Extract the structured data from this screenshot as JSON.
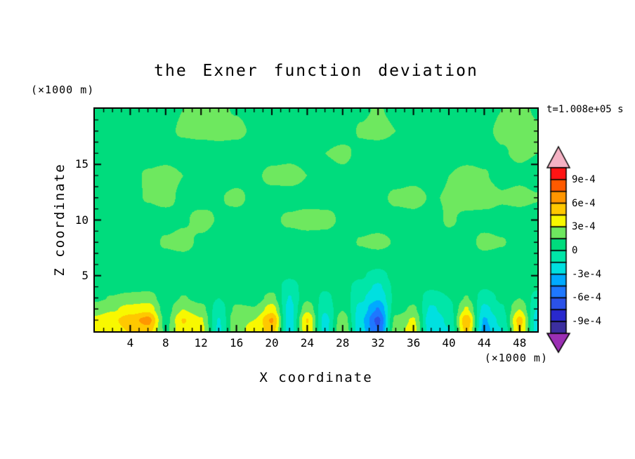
{
  "labels": {
    "title": "the Exner function deviation",
    "z_unit": "(×1000 m)",
    "x_unit": "(×1000 m)",
    "x_label": "X coordinate",
    "y_label": "Z coordinate",
    "time": "t=1.008e+05 s"
  },
  "chart_data": {
    "type": "filled-contour",
    "title": "the Exner function deviation",
    "xlabel": "X coordinate (×1000 m)",
    "ylabel": "Z coordinate (×1000 m)",
    "annotation": "t=1.008e+05 s",
    "x_range": [
      0,
      50
    ],
    "y_range": [
      0,
      20
    ],
    "x_major_ticks": [
      4,
      8,
      12,
      16,
      20,
      24,
      28,
      32,
      36,
      40,
      44,
      48
    ],
    "y_major_ticks": [
      5,
      10,
      15
    ],
    "x_minor_step": 1,
    "y_minor_step": 1,
    "contour_interval": 0.00015,
    "value_scale": 0.0001,
    "colorbar": {
      "labels_top_to_bottom": [
        "9e-4",
        "6e-4",
        "3e-4",
        "0",
        "-3e-4",
        "-6e-4",
        "-9e-4"
      ],
      "arrow_top_color": "#f5b2c4",
      "arrow_bottom_color": "#9b30b4",
      "band_colors_top_to_bottom": [
        "#ff1414",
        "#ff5a00",
        "#ff9600",
        "#ffc800",
        "#f8f800",
        "#6ee85f",
        "#00dc7d",
        "#00e6a8",
        "#00e0e0",
        "#00aaff",
        "#1e78ff",
        "#2b52e8",
        "#2929cd",
        "#3c2fa0"
      ],
      "band_min": -10.5,
      "band_max": 10.5,
      "band_units": "1e-4"
    },
    "grid": {
      "units": "1e-4",
      "x": [
        0,
        2,
        4,
        6,
        8,
        10,
        12,
        14,
        16,
        18,
        20,
        22,
        24,
        26,
        28,
        30,
        32,
        34,
        36,
        38,
        40,
        42,
        44,
        46,
        48,
        50
      ],
      "z": [
        0,
        1,
        2,
        3,
        4,
        5,
        6,
        8,
        10,
        12,
        14,
        16,
        18,
        20
      ],
      "values_by_z_row": [
        [
          3.2,
          3.8,
          4.6,
          5.2,
          1.2,
          4.2,
          3.6,
          -1.8,
          2.6,
          3.4,
          5.2,
          -2.4,
          4.2,
          -2.0,
          3.0,
          -2.4,
          -5.8,
          2.4,
          3.6,
          -2.6,
          -1.6,
          5.0,
          -3.6,
          -1.6,
          4.6,
          -2.2
        ],
        [
          3.4,
          4.2,
          5.4,
          6.6,
          1.0,
          4.6,
          3.2,
          -1.6,
          2.8,
          3.0,
          6.2,
          -2.6,
          4.6,
          -2.2,
          2.6,
          -2.6,
          -6.4,
          2.0,
          3.2,
          -2.8,
          -1.2,
          5.6,
          -3.2,
          -1.0,
          5.0,
          -2.4
        ],
        [
          2.2,
          2.8,
          3.6,
          4.0,
          0.8,
          3.0,
          2.0,
          -0.8,
          1.8,
          1.6,
          3.8,
          -2.2,
          2.6,
          -1.2,
          1.4,
          -2.0,
          -4.6,
          0.8,
          1.8,
          -1.8,
          -0.6,
          3.2,
          -2.0,
          -0.2,
          3.0,
          -1.6
        ],
        [
          1.2,
          1.6,
          2.0,
          2.2,
          0.7,
          1.6,
          1.0,
          0.0,
          1.0,
          0.8,
          2.0,
          -1.6,
          1.2,
          -0.4,
          0.8,
          -1.2,
          -2.8,
          0.4,
          0.9,
          -0.8,
          0.0,
          1.6,
          -0.8,
          0.3,
          1.5,
          -0.6
        ],
        [
          0.8,
          0.9,
          1.0,
          1.1,
          0.7,
          0.9,
          0.7,
          0.4,
          0.7,
          0.6,
          1.0,
          -0.8,
          0.8,
          0.2,
          0.6,
          -0.6,
          -1.8,
          0.4,
          0.6,
          0.2,
          0.4,
          0.9,
          0.1,
          0.5,
          0.9,
          0.2
        ],
        [
          0.7,
          0.8,
          0.8,
          0.8,
          0.7,
          0.7,
          0.6,
          0.6,
          0.7,
          0.6,
          0.8,
          0.2,
          0.7,
          0.5,
          0.6,
          0.2,
          -0.6,
          0.5,
          0.6,
          0.4,
          0.5,
          0.7,
          0.4,
          0.6,
          0.7,
          0.5
        ],
        [
          0.9,
          1.0,
          0.9,
          0.8,
          0.7,
          0.7,
          0.7,
          0.7,
          0.8,
          0.7,
          0.7,
          0.5,
          0.7,
          0.6,
          0.7,
          0.5,
          0.3,
          0.6,
          0.7,
          0.6,
          0.7,
          0.8,
          0.6,
          0.7,
          0.8,
          0.6
        ],
        [
          0.8,
          0.9,
          1.0,
          0.9,
          1.7,
          2.0,
          1.2,
          0.8,
          0.8,
          0.7,
          0.8,
          0.7,
          0.8,
          0.9,
          0.8,
          1.6,
          1.9,
          1.4,
          0.9,
          0.8,
          0.9,
          1.0,
          1.9,
          1.6,
          0.9,
          0.7
        ],
        [
          0.7,
          0.8,
          0.9,
          0.8,
          0.9,
          1.3,
          2.0,
          1.4,
          0.8,
          0.9,
          1.2,
          1.8,
          2.1,
          1.9,
          1.3,
          0.9,
          0.8,
          0.9,
          1.0,
          0.8,
          1.7,
          1.2,
          0.9,
          0.8,
          0.8,
          0.7
        ],
        [
          0.8,
          0.9,
          1.1,
          1.6,
          1.9,
          1.2,
          0.9,
          1.4,
          1.9,
          1.1,
          0.9,
          0.8,
          0.9,
          1.0,
          1.3,
          0.9,
          1.1,
          1.8,
          2.0,
          1.4,
          1.6,
          2.0,
          2.2,
          1.7,
          1.9,
          1.6
        ],
        [
          0.7,
          0.8,
          1.0,
          1.7,
          2.0,
          1.5,
          0.9,
          0.8,
          0.9,
          1.2,
          1.9,
          2.1,
          1.5,
          0.9,
          1.2,
          0.8,
          0.7,
          0.9,
          1.1,
          0.9,
          1.5,
          1.9,
          1.6,
          1.0,
          1.2,
          0.9
        ],
        [
          0.9,
          1.2,
          0.9,
          0.8,
          0.9,
          0.8,
          0.7,
          0.8,
          0.9,
          0.8,
          0.9,
          1.0,
          0.9,
          1.5,
          1.8,
          1.2,
          0.8,
          0.9,
          0.8,
          0.7,
          0.9,
          1.0,
          1.1,
          1.4,
          1.7,
          1.5
        ],
        [
          1.1,
          1.5,
          1.0,
          0.9,
          1.2,
          1.7,
          1.9,
          2.0,
          1.8,
          1.3,
          0.9,
          0.8,
          0.9,
          0.8,
          0.9,
          1.6,
          1.9,
          1.5,
          0.9,
          0.8,
          0.9,
          1.0,
          1.3,
          1.7,
          1.9,
          1.6
        ],
        [
          1.0,
          1.3,
          0.9,
          0.8,
          1.0,
          1.5,
          1.8,
          1.7,
          1.4,
          1.0,
          0.8,
          0.7,
          0.8,
          0.7,
          0.8,
          1.3,
          1.6,
          1.2,
          0.8,
          0.7,
          0.8,
          0.9,
          1.1,
          1.5,
          1.7,
          1.4
        ]
      ]
    }
  }
}
